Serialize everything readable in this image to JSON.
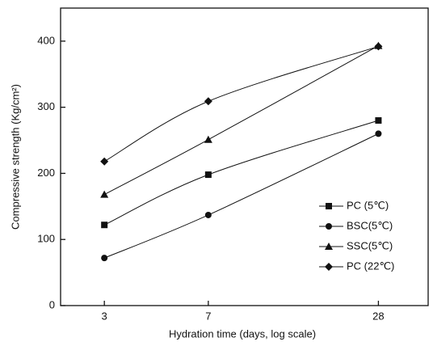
{
  "chart_data": {
    "type": "line",
    "x_label": "Hydration time (days, log scale)",
    "y_label": "Compressive strength (Kg/cm²)",
    "x": [
      3,
      7,
      28
    ],
    "xlim": [
      2.1,
      42
    ],
    "xticks": [
      3,
      7,
      28
    ],
    "x_log_scale": true,
    "ylim": [
      0,
      450
    ],
    "yticks": [
      0,
      100,
      200,
      300,
      400
    ],
    "legend_position": "lower right",
    "series": [
      {
        "name": "PC  (5℃)",
        "color": "#111111",
        "marker": "square",
        "values": [
          122,
          198,
          280
        ]
      },
      {
        "name": "BSC(5℃)",
        "color": "#111111",
        "marker": "circle",
        "values": [
          72,
          137,
          260
        ]
      },
      {
        "name": "SSC(5℃)",
        "color": "#111111",
        "marker": "triangle",
        "values": [
          168,
          251,
          393
        ]
      },
      {
        "name": "PC (22℃)",
        "color": "#111111",
        "marker": "diamond",
        "values": [
          218,
          309,
          392
        ]
      }
    ]
  }
}
